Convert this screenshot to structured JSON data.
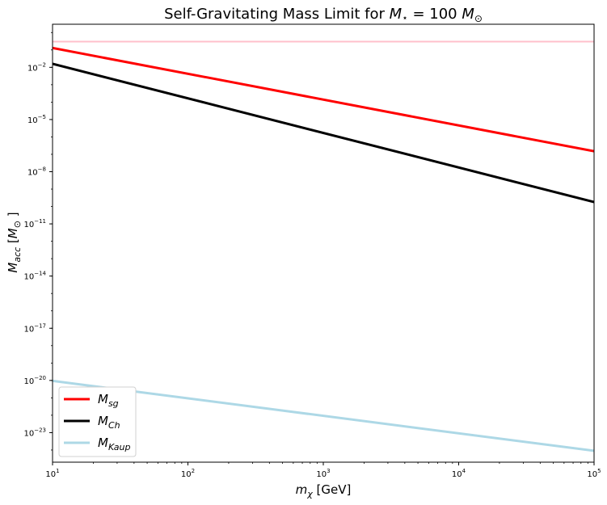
{
  "chart_data": {
    "type": "line",
    "title": "Self-Gravitating Mass Limit for M⋆ = 100 M⊙",
    "title_parts": {
      "prefix": "Self-Gravitating Mass Limit for ",
      "m": "M",
      "star": "⋆",
      "mid": " = 100 ",
      "sun": "⊙"
    },
    "xlabel": "m_χ [GeV]",
    "xlabel_parts": {
      "m": "m",
      "chi": "χ",
      "unit": " [GeV]"
    },
    "ylabel": "M_acc [M⊙]",
    "ylabel_parts": {
      "m": "M",
      "sub": "acc",
      "open": " [",
      "sun": "⊙",
      "close": " ]"
    },
    "x_scale": "log",
    "y_scale": "log",
    "xlim": [
      10,
      100000
    ],
    "ylim": [
      2e-25,
      3.0
    ],
    "x_ticks": [
      {
        "value": 10,
        "mant": "10",
        "exp": "1"
      },
      {
        "value": 100,
        "mant": "10",
        "exp": "2"
      },
      {
        "value": 1000,
        "mant": "10",
        "exp": "3"
      },
      {
        "value": 10000,
        "mant": "10",
        "exp": "4"
      },
      {
        "value": 100000,
        "mant": "10",
        "exp": "5"
      }
    ],
    "y_ticks": [
      {
        "value": 0.01,
        "mant": "10",
        "exp": "−2"
      },
      {
        "value": 1e-05,
        "mant": "10",
        "exp": "−5"
      },
      {
        "value": 1e-08,
        "mant": "10",
        "exp": "−8"
      },
      {
        "value": 1e-11,
        "mant": "10",
        "exp": "−11"
      },
      {
        "value": 1e-14,
        "mant": "10",
        "exp": "−14"
      },
      {
        "value": 1e-17,
        "mant": "10",
        "exp": "−17"
      },
      {
        "value": 1e-20,
        "mant": "10",
        "exp": "−20"
      },
      {
        "value": 1e-23,
        "mant": "10",
        "exp": "−23"
      }
    ],
    "grid": false,
    "legend_position": "lower-left",
    "series": [
      {
        "name": "M_sg",
        "label_main": "M",
        "label_sub": "sg",
        "color": "#ff0000",
        "x": [
          10,
          100000
        ],
        "y": [
          0.13,
          1.5e-07
        ],
        "legend": true
      },
      {
        "name": "M_Ch",
        "label_main": "M",
        "label_sub": "Ch",
        "color": "#000000",
        "x": [
          10,
          100000
        ],
        "y": [
          0.016,
          1.8e-10
        ],
        "legend": true
      },
      {
        "name": "M_Kaup",
        "label_main": "M",
        "label_sub": "Kaup",
        "color": "#add8e6",
        "x": [
          10,
          100000
        ],
        "y": [
          9.5e-21,
          9e-25
        ],
        "legend": true
      },
      {
        "color": "#ffc0cb",
        "x": [
          10,
          100000
        ],
        "y": [
          0.3,
          0.3
        ],
        "legend": false
      }
    ]
  }
}
